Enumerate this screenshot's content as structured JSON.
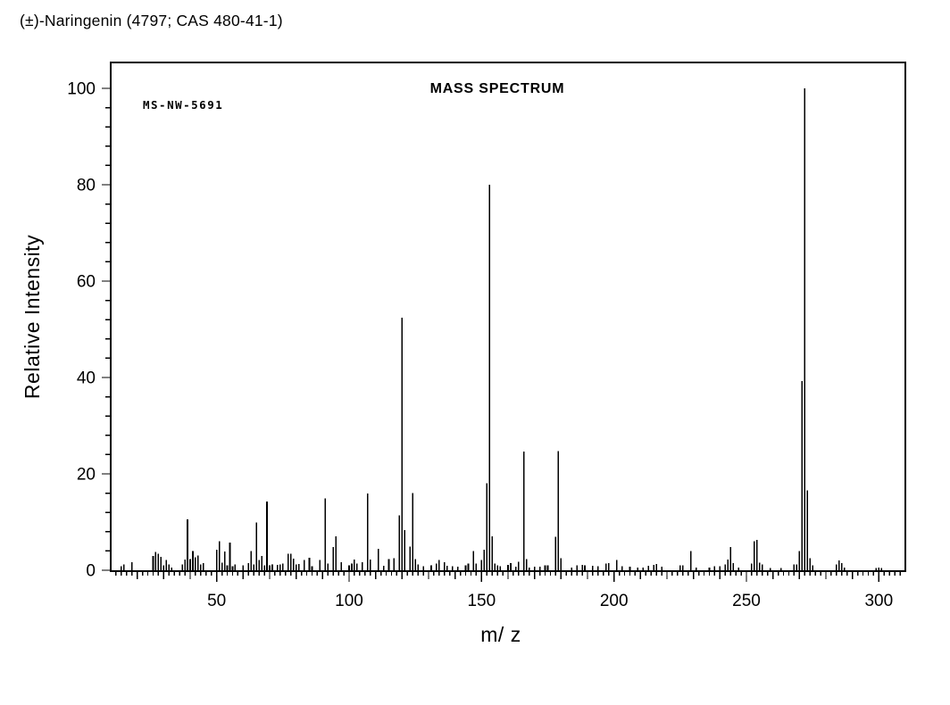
{
  "page_title": "(±)-Naringenin (4797; CAS 480-41-1)",
  "chart_data": {
    "type": "bar",
    "title": "MASS SPECTRUM",
    "spectrum_id": "MS-NW-5691",
    "xlabel": "m/ z",
    "ylabel": "Relative Intensity",
    "xlim": [
      10,
      310
    ],
    "ylim": [
      0,
      100
    ],
    "x_ticks": [
      50,
      100,
      150,
      200,
      250,
      300
    ],
    "y_ticks": [
      0,
      20,
      40,
      60,
      80,
      100
    ],
    "x_minor_tick_step": 2,
    "x_medium_tick_step": 10,
    "y_minor_tick_step": 4,
    "grid": false,
    "legend": null,
    "peaks": [
      [
        14,
        0.8
      ],
      [
        15,
        1.2
      ],
      [
        18,
        1.7
      ],
      [
        26,
        3.0
      ],
      [
        27,
        3.8
      ],
      [
        28,
        3.4
      ],
      [
        29,
        2.8
      ],
      [
        30,
        1.0
      ],
      [
        31,
        2.1
      ],
      [
        32,
        1.2
      ],
      [
        33,
        0.6
      ],
      [
        37,
        1.2
      ],
      [
        38,
        2.2
      ],
      [
        39,
        10.6
      ],
      [
        40,
        2.3
      ],
      [
        41,
        4.0
      ],
      [
        42,
        2.7
      ],
      [
        43,
        3.1
      ],
      [
        44,
        1.2
      ],
      [
        45,
        1.5
      ],
      [
        50,
        4.3
      ],
      [
        51,
        6.0
      ],
      [
        52,
        1.6
      ],
      [
        53,
        3.9
      ],
      [
        54,
        1.0
      ],
      [
        55,
        5.7
      ],
      [
        56,
        0.8
      ],
      [
        57,
        1.2
      ],
      [
        60,
        1.0
      ],
      [
        62,
        1.5
      ],
      [
        63,
        4.0
      ],
      [
        64,
        1.2
      ],
      [
        65,
        9.9
      ],
      [
        66,
        2.1
      ],
      [
        67,
        3.0
      ],
      [
        68,
        1.0
      ],
      [
        69,
        14.3
      ],
      [
        70,
        1.0
      ],
      [
        71,
        1.2
      ],
      [
        73,
        1.1
      ],
      [
        74,
        1.2
      ],
      [
        75,
        1.4
      ],
      [
        77,
        3.4
      ],
      [
        78,
        3.4
      ],
      [
        79,
        2.4
      ],
      [
        80,
        1.2
      ],
      [
        81,
        1.3
      ],
      [
        83,
        2.1
      ],
      [
        85,
        2.6
      ],
      [
        86,
        0.8
      ],
      [
        89,
        2.1
      ],
      [
        91,
        14.9
      ],
      [
        92,
        1.4
      ],
      [
        94,
        4.8
      ],
      [
        95,
        7.0
      ],
      [
        97,
        1.7
      ],
      [
        100,
        1.0
      ],
      [
        101,
        1.4
      ],
      [
        102,
        2.2
      ],
      [
        103,
        1.4
      ],
      [
        105,
        1.7
      ],
      [
        107,
        15.9
      ],
      [
        108,
        2.2
      ],
      [
        111,
        4.4
      ],
      [
        113,
        0.9
      ],
      [
        115,
        2.3
      ],
      [
        117,
        2.5
      ],
      [
        119,
        11.4
      ],
      [
        120,
        52.4
      ],
      [
        121,
        8.3
      ],
      [
        123,
        4.9
      ],
      [
        124,
        16.0
      ],
      [
        125,
        2.3
      ],
      [
        126,
        1.2
      ],
      [
        128,
        0.8
      ],
      [
        131,
        1.0
      ],
      [
        133,
        1.4
      ],
      [
        134,
        2.1
      ],
      [
        136,
        1.7
      ],
      [
        137,
        0.9
      ],
      [
        139,
        0.8
      ],
      [
        141,
        0.7
      ],
      [
        144,
        1.0
      ],
      [
        145,
        1.4
      ],
      [
        147,
        4.0
      ],
      [
        148,
        1.4
      ],
      [
        150,
        2.1
      ],
      [
        151,
        4.3
      ],
      [
        152,
        18.1
      ],
      [
        153,
        80.0
      ],
      [
        154,
        7.0
      ],
      [
        155,
        1.4
      ],
      [
        156,
        1.0
      ],
      [
        157,
        0.8
      ],
      [
        160,
        1.1
      ],
      [
        161,
        1.5
      ],
      [
        163,
        0.7
      ],
      [
        164,
        1.8
      ],
      [
        166,
        24.6
      ],
      [
        167,
        2.3
      ],
      [
        168,
        0.6
      ],
      [
        170,
        0.7
      ],
      [
        172,
        0.7
      ],
      [
        174,
        1.0
      ],
      [
        175,
        1.0
      ],
      [
        178,
        6.9
      ],
      [
        179,
        24.7
      ],
      [
        180,
        2.5
      ],
      [
        184,
        0.6
      ],
      [
        186,
        1.0
      ],
      [
        188,
        1.1
      ],
      [
        189,
        1.0
      ],
      [
        192,
        0.9
      ],
      [
        194,
        0.8
      ],
      [
        197,
        1.4
      ],
      [
        198,
        1.5
      ],
      [
        201,
        2.1
      ],
      [
        203,
        0.8
      ],
      [
        206,
        0.7
      ],
      [
        209,
        0.6
      ],
      [
        211,
        0.6
      ],
      [
        213,
        0.9
      ],
      [
        215,
        1.1
      ],
      [
        216,
        1.3
      ],
      [
        218,
        0.7
      ],
      [
        225,
        1.0
      ],
      [
        226,
        1.0
      ],
      [
        229,
        4.0
      ],
      [
        231,
        0.6
      ],
      [
        236,
        0.6
      ],
      [
        238,
        0.8
      ],
      [
        240,
        0.8
      ],
      [
        242,
        1.2
      ],
      [
        243,
        2.2
      ],
      [
        244,
        4.8
      ],
      [
        245,
        1.5
      ],
      [
        247,
        0.6
      ],
      [
        252,
        1.4
      ],
      [
        253,
        6.0
      ],
      [
        254,
        6.3
      ],
      [
        255,
        1.6
      ],
      [
        256,
        1.2
      ],
      [
        259,
        0.5
      ],
      [
        263,
        0.5
      ],
      [
        268,
        1.2
      ],
      [
        269,
        1.2
      ],
      [
        270,
        4.0
      ],
      [
        271,
        39.3
      ],
      [
        272,
        100.0
      ],
      [
        273,
        16.6
      ],
      [
        274,
        2.5
      ],
      [
        275,
        1.0
      ],
      [
        284,
        1.2
      ],
      [
        285,
        2.0
      ],
      [
        286,
        1.5
      ],
      [
        287,
        0.6
      ],
      [
        299,
        0.5
      ],
      [
        300,
        0.6
      ],
      [
        301,
        0.5
      ]
    ]
  }
}
